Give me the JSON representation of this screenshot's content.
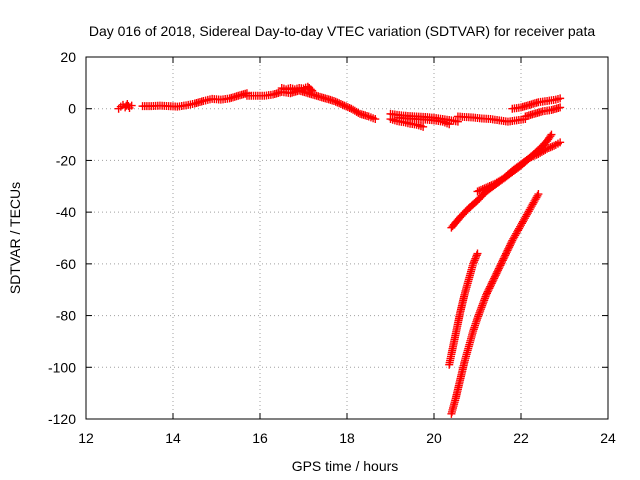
{
  "chart_data": {
    "type": "scatter",
    "title": "Day 016 of 2018, Sidereal Day-to-day VTEC variation (SDTVAR) for receiver pata",
    "xlabel": "GPS time / hours",
    "ylabel": "SDTVAR / TECUs",
    "xlim": [
      12,
      24
    ],
    "ylim": [
      -120,
      20
    ],
    "xticks": [
      "12",
      "14",
      "16",
      "18",
      "20",
      "22",
      "24"
    ],
    "yticks": [
      "-120",
      "-100",
      "-80",
      "-60",
      "-40",
      "-20",
      "0",
      "20"
    ],
    "grid": true,
    "legend": "none",
    "marker": "plus",
    "color": "#ff0000",
    "series": [
      {
        "x": [
          12.75,
          12.8,
          12.85,
          12.9,
          12.95,
          13.0,
          13.05
        ],
        "y": [
          0.0,
          0.8,
          1.5,
          0.5,
          1.8,
          0.3,
          1.2
        ]
      },
      {
        "x": [
          13.3,
          13.5,
          13.7,
          13.9,
          14.1,
          14.3,
          14.5,
          14.7,
          14.9,
          15.1,
          15.3,
          15.5,
          15.7
        ],
        "y": [
          1.0,
          1.0,
          1.2,
          1.0,
          0.8,
          1.3,
          2.0,
          3.0,
          3.8,
          3.5,
          4.0,
          5.0,
          6.0
        ]
      },
      {
        "x": [
          15.7,
          15.9,
          16.1,
          16.3,
          16.5,
          16.7,
          16.9,
          17.1,
          17.3,
          17.5,
          17.7,
          17.9,
          18.1,
          18.3,
          18.5,
          18.65
        ],
        "y": [
          5.0,
          5.0,
          5.0,
          5.5,
          6.5,
          6.0,
          7.0,
          6.0,
          5.0,
          4.0,
          3.0,
          1.5,
          0.0,
          -2.0,
          -3.0,
          -4.0
        ]
      },
      {
        "x": [
          16.5,
          16.6,
          16.7,
          16.8,
          16.9,
          17.0,
          17.1,
          17.2
        ],
        "y": [
          8.0,
          7.5,
          8.0,
          7.5,
          8.0,
          7.8,
          8.5,
          7.0
        ]
      },
      {
        "x": [
          19.0,
          19.15,
          19.3,
          19.45,
          19.6,
          19.75
        ],
        "y": [
          -4.0,
          -4.8,
          -5.2,
          -5.8,
          -6.2,
          -7.0
        ]
      },
      {
        "x": [
          19.0,
          19.2,
          19.4,
          19.6,
          19.8,
          20.0,
          20.2,
          20.4,
          20.55
        ],
        "y": [
          -2.0,
          -2.5,
          -2.8,
          -3.0,
          -3.2,
          -3.5,
          -4.0,
          -4.5,
          -5.0
        ]
      },
      {
        "x": [
          19.2,
          19.4,
          19.6,
          19.8,
          20.0,
          20.2,
          20.35
        ],
        "y": [
          -3.5,
          -3.8,
          -4.0,
          -4.2,
          -4.5,
          -5.0,
          -6.0
        ]
      },
      {
        "x": [
          20.55,
          20.7,
          20.9,
          21.1,
          21.3,
          21.5,
          21.7,
          21.9,
          22.1
        ],
        "y": [
          -3.0,
          -3.2,
          -3.4,
          -3.8,
          -4.0,
          -4.5,
          -5.0,
          -4.5,
          -4.0
        ]
      },
      {
        "x": [
          21.8,
          22.0,
          22.2,
          22.4,
          22.6,
          22.8,
          22.9
        ],
        "y": [
          0.0,
          0.5,
          1.5,
          2.5,
          3.0,
          3.5,
          4.0
        ]
      },
      {
        "x": [
          22.1,
          22.3,
          22.5,
          22.7,
          22.9
        ],
        "y": [
          -3.0,
          -2.0,
          -1.0,
          -0.5,
          0.5
        ]
      },
      {
        "x": [
          20.4,
          20.6,
          20.8,
          21.0,
          21.2,
          21.4,
          21.6,
          21.8,
          22.0,
          22.2,
          22.4,
          22.6,
          22.8,
          22.9
        ],
        "y": [
          -46.0,
          -42.0,
          -38.5,
          -35.5,
          -32.0,
          -29.5,
          -27.0,
          -24.0,
          -21.5,
          -19.0,
          -17.5,
          -15.5,
          -14.0,
          -13.0
        ]
      },
      {
        "x": [
          21.0,
          21.2,
          21.4,
          21.6,
          21.8,
          22.0,
          22.2,
          22.4,
          22.6,
          22.7
        ],
        "y": [
          -32.0,
          -30.5,
          -29.0,
          -27.0,
          -24.5,
          -22.0,
          -19.0,
          -16.0,
          -12.5,
          -10.0
        ]
      },
      {
        "x": [
          20.35,
          20.4,
          20.5,
          20.6,
          20.7,
          20.8,
          20.9,
          21.0
        ],
        "y": [
          -99.0,
          -95.0,
          -87.0,
          -79.0,
          -72.0,
          -66.0,
          -60.0,
          -56.0
        ]
      },
      {
        "x": [
          20.4,
          20.5,
          20.6,
          20.7,
          20.8,
          20.9,
          21.0,
          21.2,
          21.4,
          21.6,
          21.8,
          22.0,
          22.2,
          22.4
        ],
        "y": [
          -118.0,
          -112.0,
          -105.0,
          -98.0,
          -92.0,
          -86.0,
          -81.0,
          -72.0,
          -65.0,
          -58.0,
          -51.0,
          -45.0,
          -39.0,
          -33.0
        ]
      }
    ]
  }
}
